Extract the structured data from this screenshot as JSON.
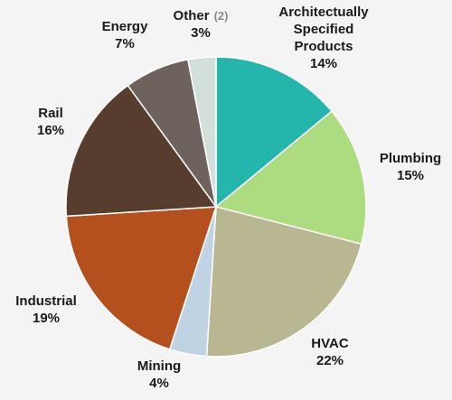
{
  "chart_data": {
    "type": "pie",
    "start_angle_deg": 90,
    "direction": "clockwise",
    "legend": "none",
    "slices": [
      {
        "label_lines": [
          "Architectually",
          "Specified",
          "Products"
        ],
        "value": 14,
        "pct_label": "14%",
        "color": "#24b5ac"
      },
      {
        "label_lines": [
          "Plumbing"
        ],
        "value": 15,
        "pct_label": "15%",
        "color": "#addb7f"
      },
      {
        "label_lines": [
          "HVAC"
        ],
        "value": 22,
        "pct_label": "22%",
        "color": "#b9b692"
      },
      {
        "label_lines": [
          "Mining"
        ],
        "value": 4,
        "pct_label": "4%",
        "color": "#bfd3e2"
      },
      {
        "label_lines": [
          "Industrial"
        ],
        "value": 19,
        "pct_label": "19%",
        "color": "#b3501e"
      },
      {
        "label_lines": [
          "Rail"
        ],
        "value": 16,
        "pct_label": "16%",
        "color": "#573d2d"
      },
      {
        "label_lines": [
          "Energy"
        ],
        "value": 7,
        "pct_label": "7%",
        "color": "#6e625d"
      },
      {
        "label_lines": [
          "Other"
        ],
        "note": "(2)",
        "value": 3,
        "pct_label": "3%",
        "color": "#d3dfdb"
      }
    ]
  }
}
